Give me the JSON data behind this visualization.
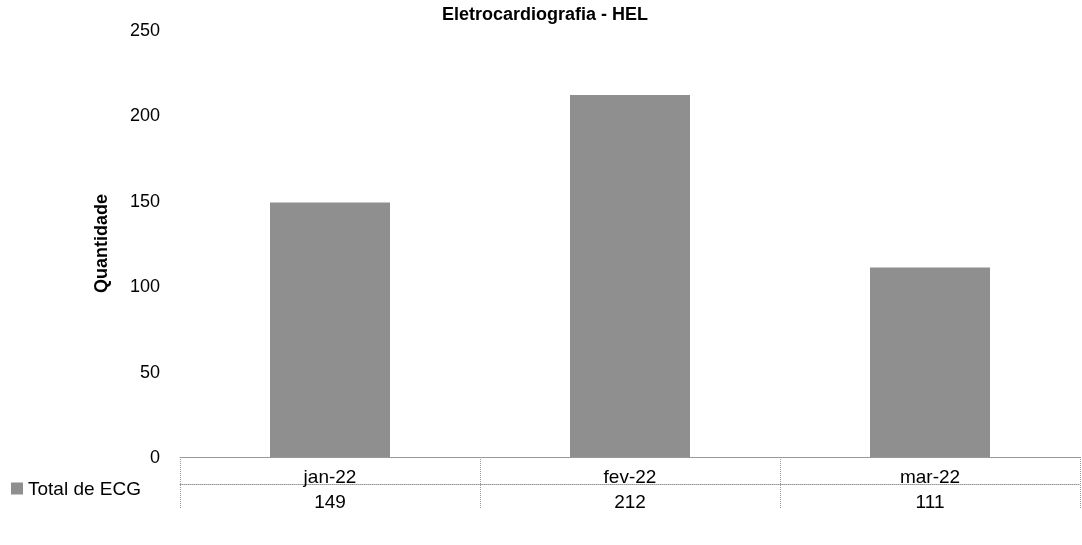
{
  "chart_data": {
    "type": "bar",
    "title": "Eletrocardiografia - HEL",
    "ylabel": "Quantidade",
    "categories": [
      "jan-22",
      "fev-22",
      "mar-22"
    ],
    "series": [
      {
        "name": "Total de ECG",
        "color": "#8f8f8f",
        "values": [
          149,
          212,
          111
        ]
      }
    ],
    "ylim": [
      0,
      250
    ],
    "yticks": [
      0,
      50,
      100,
      150,
      200,
      250
    ],
    "grid": false,
    "legend": "bottom left",
    "data_labels": true
  }
}
